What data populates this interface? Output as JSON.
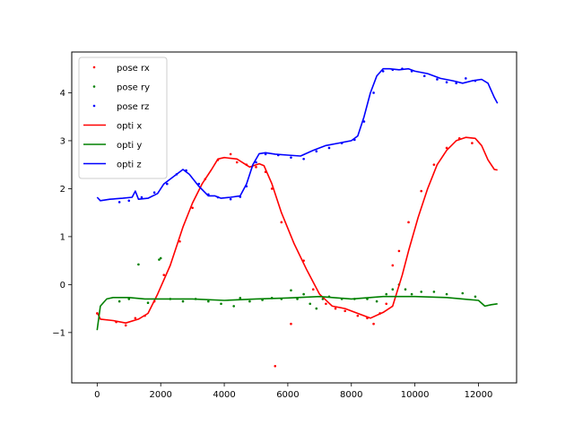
{
  "chart_data": {
    "type": "line",
    "title": "",
    "xlabel": "",
    "ylabel": "",
    "xlim": [
      -800,
      13200
    ],
    "ylim": [
      -2.05,
      4.85
    ],
    "grid": false,
    "legend_position": "top-left",
    "x_ticks": [
      0,
      2000,
      4000,
      6000,
      8000,
      10000,
      12000
    ],
    "y_ticks": [
      -1,
      0,
      1,
      2,
      3,
      4
    ],
    "x_tick_labels": [
      "0",
      "2000",
      "4000",
      "6000",
      "8000",
      "10000",
      "12000"
    ],
    "y_tick_labels": [
      "−1",
      "0",
      "1",
      "2",
      "3",
      "4"
    ],
    "line_series": [
      {
        "name": "opti x",
        "color": "#ff0000",
        "x": [
          0,
          100,
          500,
          900,
          1300,
          1600,
          1900,
          2300,
          2700,
          3000,
          3300,
          3600,
          3800,
          4000,
          4400,
          4800,
          5100,
          5250,
          5500,
          5800,
          6200,
          6600,
          7000,
          7400,
          7800,
          8200,
          8600,
          9000,
          9300,
          9600,
          9800,
          10100,
          10400,
          10700,
          11000,
          11300,
          11600,
          11900,
          12100,
          12300,
          12500,
          12600
        ],
        "y": [
          -0.58,
          -0.72,
          -0.75,
          -0.8,
          -0.72,
          -0.6,
          -0.2,
          0.4,
          1.2,
          1.7,
          2.1,
          2.4,
          2.62,
          2.65,
          2.62,
          2.45,
          2.52,
          2.48,
          2.1,
          1.5,
          0.85,
          0.3,
          -0.2,
          -0.45,
          -0.5,
          -0.6,
          -0.7,
          -0.58,
          -0.45,
          0.2,
          0.7,
          1.4,
          2.0,
          2.5,
          2.8,
          3.0,
          3.07,
          3.05,
          2.9,
          2.6,
          2.4,
          2.39
        ]
      },
      {
        "name": "opti y",
        "color": "#008000",
        "x": [
          0,
          100,
          300,
          500,
          1000,
          1500,
          2000,
          3000,
          4000,
          5000,
          6000,
          7000,
          8000,
          9000,
          10000,
          11000,
          11500,
          12000,
          12200,
          12400,
          12600
        ],
        "y": [
          -0.95,
          -0.45,
          -0.3,
          -0.27,
          -0.27,
          -0.3,
          -0.3,
          -0.3,
          -0.33,
          -0.3,
          -0.28,
          -0.25,
          -0.3,
          -0.25,
          -0.25,
          -0.27,
          -0.3,
          -0.33,
          -0.45,
          -0.42,
          -0.4
        ],
        "small_offset": [
          0,
          0
        ]
      },
      {
        "name": "opti z",
        "color": "#0000ff",
        "x": [
          0,
          100,
          400,
          800,
          1100,
          1200,
          1300,
          1600,
          1900,
          2100,
          2400,
          2700,
          2900,
          3200,
          3500,
          3700,
          3900,
          4200,
          4500,
          4700,
          4900,
          5100,
          5300,
          5600,
          6000,
          6400,
          6800,
          7200,
          7600,
          8000,
          8200,
          8400,
          8600,
          8800,
          9000,
          9200,
          9500,
          9800,
          10000,
          10400,
          10800,
          11200,
          11500,
          11800,
          12100,
          12300,
          12500,
          12600
        ],
        "y": [
          1.82,
          1.75,
          1.78,
          1.8,
          1.82,
          1.95,
          1.78,
          1.8,
          1.9,
          2.1,
          2.25,
          2.4,
          2.3,
          2.05,
          1.85,
          1.85,
          1.8,
          1.82,
          1.85,
          2.1,
          2.5,
          2.73,
          2.75,
          2.72,
          2.7,
          2.68,
          2.8,
          2.9,
          2.95,
          3.0,
          3.1,
          3.5,
          4.0,
          4.35,
          4.5,
          4.5,
          4.48,
          4.5,
          4.45,
          4.4,
          4.3,
          4.25,
          4.2,
          4.25,
          4.28,
          4.2,
          3.9,
          3.78
        ]
      }
    ],
    "scatter_series": [
      {
        "name": "pose rx",
        "color": "#ff0000",
        "x": [
          0,
          600,
          900,
          1200,
          1500,
          1800,
          2100,
          2600,
          3000,
          3400,
          3800,
          4200,
          4400,
          4700,
          5000,
          5300,
          5500,
          5600,
          5800,
          6100,
          6500,
          6800,
          7200,
          7500,
          7800,
          8200,
          8500,
          8700,
          8900,
          9100,
          9300,
          9500,
          9800,
          10200,
          10600,
          11000,
          11400,
          11800
        ],
        "y": [
          -0.6,
          -0.78,
          -0.85,
          -0.7,
          -0.65,
          -0.35,
          0.2,
          0.9,
          1.6,
          2.2,
          2.6,
          2.72,
          2.55,
          2.5,
          2.45,
          2.35,
          2.0,
          -1.7,
          1.3,
          -0.82,
          0.5,
          -0.1,
          -0.4,
          -0.5,
          -0.55,
          -0.65,
          -0.7,
          -0.82,
          -0.6,
          -0.4,
          0.4,
          0.7,
          1.3,
          1.95,
          2.5,
          2.85,
          3.05,
          2.95
        ]
      },
      {
        "name": "pose ry",
        "color": "#008000",
        "x": [
          700,
          1000,
          1300,
          1600,
          1950,
          2000,
          2300,
          2700,
          3100,
          3500,
          3900,
          4300,
          4500,
          4800,
          5200,
          5500,
          5800,
          6100,
          6300,
          6500,
          6700,
          6900,
          7100,
          7300,
          7700,
          8100,
          8500,
          8800,
          9100,
          9300,
          9500,
          9700,
          9900,
          10200,
          10600,
          11000,
          11500,
          11900
        ],
        "y": [
          -0.35,
          -0.3,
          0.42,
          -0.38,
          0.52,
          0.55,
          -0.3,
          -0.35,
          -0.3,
          -0.35,
          -0.4,
          -0.45,
          -0.28,
          -0.35,
          -0.32,
          -0.28,
          -0.3,
          -0.12,
          -0.3,
          -0.2,
          -0.4,
          -0.5,
          -0.3,
          -0.25,
          -0.3,
          -0.3,
          -0.3,
          -0.35,
          -0.2,
          -0.1,
          0.0,
          -0.1,
          -0.2,
          -0.15,
          -0.15,
          -0.2,
          -0.18,
          -0.25
        ]
      },
      {
        "name": "pose rz",
        "color": "#0000ff",
        "x": [
          700,
          1000,
          1400,
          1800,
          2200,
          2500,
          2800,
          3200,
          3500,
          3800,
          4200,
          4500,
          4700,
          5000,
          5300,
          5700,
          6100,
          6500,
          6900,
          7300,
          7700,
          8100,
          8400,
          8700,
          9000,
          9300,
          9600,
          9900,
          10300,
          10700,
          11000,
          11300,
          11600,
          11900
        ],
        "y": [
          1.72,
          1.75,
          1.82,
          1.92,
          2.1,
          2.3,
          2.38,
          2.1,
          1.88,
          1.82,
          1.78,
          1.83,
          2.05,
          2.55,
          2.72,
          2.7,
          2.65,
          2.62,
          2.78,
          2.85,
          2.95,
          3.02,
          3.4,
          4.0,
          4.45,
          4.48,
          4.5,
          4.45,
          4.35,
          4.28,
          4.22,
          4.2,
          4.3,
          4.25
        ]
      }
    ],
    "legend": [
      {
        "label": "pose rx",
        "kind": "marker",
        "color": "#ff0000"
      },
      {
        "label": "pose ry",
        "kind": "marker",
        "color": "#008000"
      },
      {
        "label": "pose rz",
        "kind": "marker",
        "color": "#0000ff"
      },
      {
        "label": "opti x",
        "kind": "line",
        "color": "#ff0000"
      },
      {
        "label": "opti y",
        "kind": "line",
        "color": "#008000"
      },
      {
        "label": "opti z",
        "kind": "line",
        "color": "#0000ff"
      }
    ]
  }
}
